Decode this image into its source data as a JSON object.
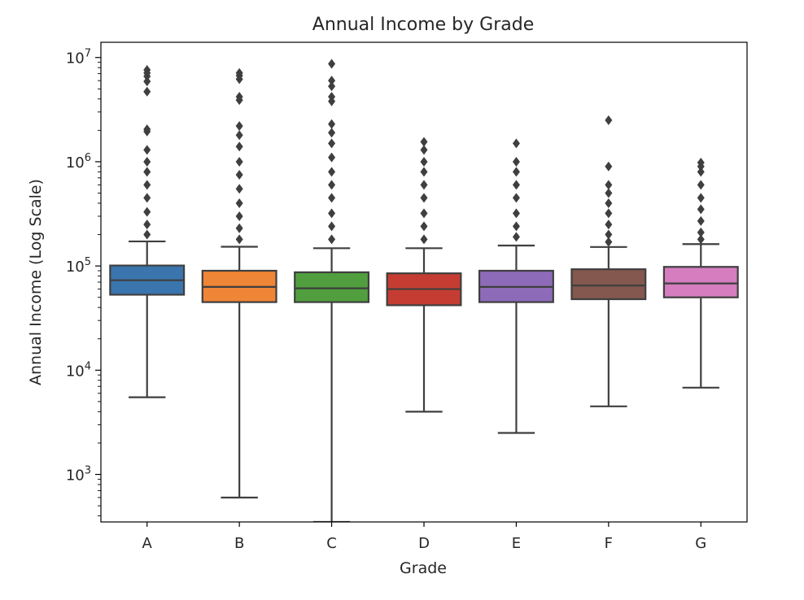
{
  "chart_data": {
    "type": "box",
    "title": "Annual Income by Grade",
    "xlabel": "Grade",
    "ylabel": "Annual Income (Log Scale)",
    "yscale": "log",
    "ylim": [
      350,
      14000000
    ],
    "yticks": [
      {
        "value": 1000,
        "base": "10",
        "exp": "3"
      },
      {
        "value": 10000,
        "base": "10",
        "exp": "4"
      },
      {
        "value": 100000,
        "base": "10",
        "exp": "5"
      },
      {
        "value": 1000000,
        "base": "10",
        "exp": "6"
      },
      {
        "value": 10000000,
        "base": "10",
        "exp": "7"
      }
    ],
    "grid": false,
    "categories": [
      "A",
      "B",
      "C",
      "D",
      "E",
      "F",
      "G"
    ],
    "boxes": [
      {
        "category": "A",
        "color": "#3a75ae",
        "whisker_low": 5500,
        "q1": 53000,
        "median": 73000,
        "q3": 101000,
        "whisker_high": 172000,
        "outliers": [
          7600000,
          7100000,
          6600000,
          5900000,
          4700000,
          2050000,
          1950000,
          1300000,
          1000000,
          800000,
          600000,
          450000,
          330000,
          250000,
          200000
        ]
      },
      {
        "category": "B",
        "color": "#ef8536",
        "whisker_low": 600,
        "q1": 45000,
        "median": 63000,
        "q3": 90000,
        "whisker_high": 153000,
        "outliers": [
          7100000,
          6700000,
          6200000,
          4200000,
          3900000,
          2200000,
          1800000,
          1400000,
          1000000,
          750000,
          550000,
          400000,
          300000,
          230000,
          180000
        ]
      },
      {
        "category": "C",
        "color": "#519e3e",
        "whisker_low": 350,
        "q1": 45000,
        "median": 61000,
        "q3": 87000,
        "whisker_high": 148000,
        "outliers": [
          8700000,
          6000000,
          5300000,
          4200000,
          3800000,
          2300000,
          1900000,
          1500000,
          1100000,
          800000,
          600000,
          450000,
          320000,
          240000,
          180000
        ]
      },
      {
        "category": "D",
        "color": "#c53d32",
        "whisker_low": 4000,
        "q1": 42000,
        "median": 60000,
        "q3": 85000,
        "whisker_high": 148000,
        "outliers": [
          1550000,
          1300000,
          1000000,
          800000,
          600000,
          450000,
          320000,
          240000,
          180000
        ]
      },
      {
        "category": "E",
        "color": "#8d6bb8",
        "whisker_low": 2500,
        "q1": 45000,
        "median": 63000,
        "q3": 90000,
        "whisker_high": 157000,
        "outliers": [
          1500000,
          1000000,
          800000,
          600000,
          450000,
          320000,
          240000,
          190000
        ]
      },
      {
        "category": "F",
        "color": "#84584e",
        "whisker_low": 4500,
        "q1": 48000,
        "median": 65000,
        "q3": 93000,
        "whisker_high": 152000,
        "outliers": [
          2500000,
          900000,
          600000,
          500000,
          400000,
          320000,
          250000,
          200000,
          170000
        ]
      },
      {
        "category": "G",
        "color": "#d57dbe",
        "whisker_low": 6800,
        "q1": 50000,
        "median": 68000,
        "q3": 98000,
        "whisker_high": 162000,
        "outliers": [
          980000,
          900000,
          800000,
          600000,
          450000,
          350000,
          270000,
          210000,
          180000
        ]
      }
    ]
  }
}
